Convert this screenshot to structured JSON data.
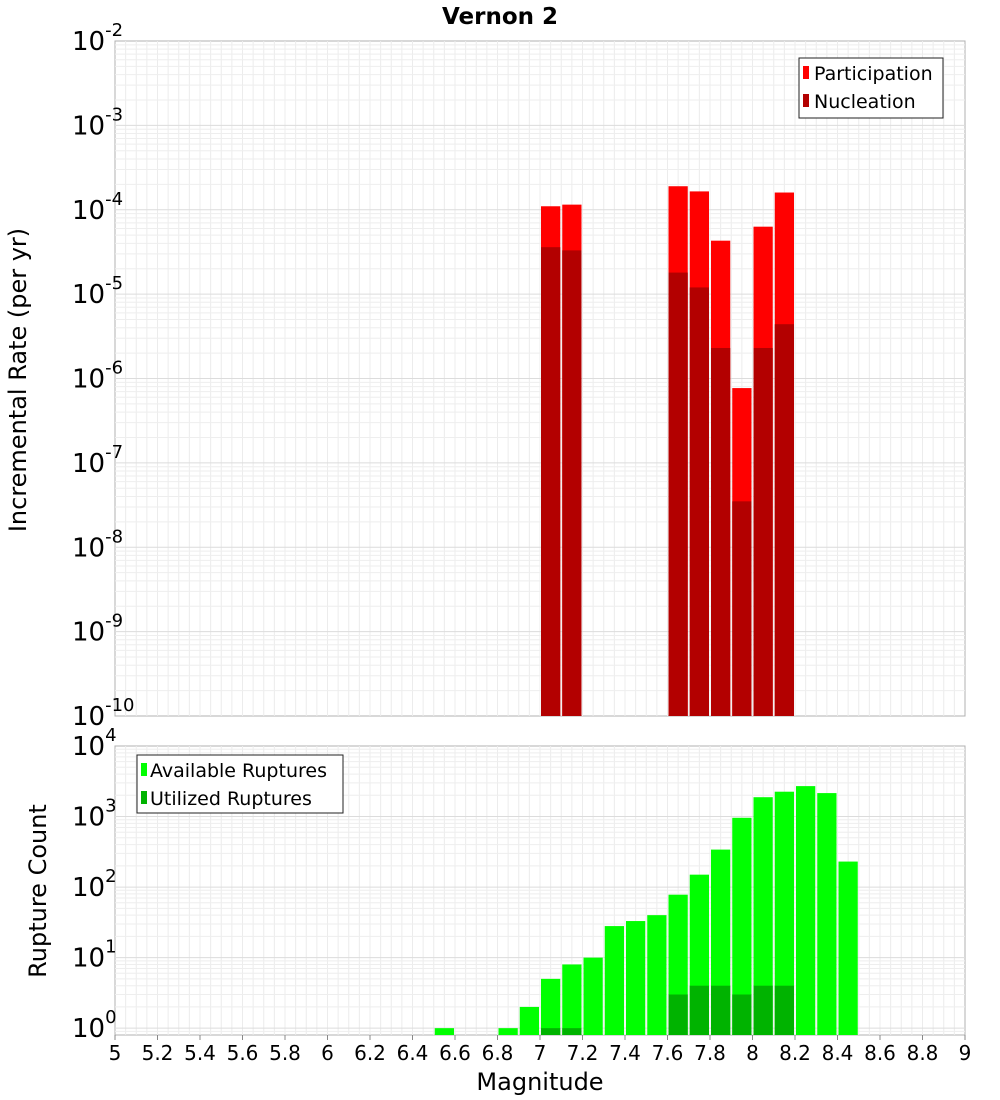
{
  "chart_data": [
    {
      "type": "bar",
      "title": "Vernon 2",
      "xlabel": "",
      "ylabel": "Incremental Rate (per yr)",
      "yscale": "log",
      "ylim": [
        1e-10,
        0.01
      ],
      "xlim": [
        5,
        9
      ],
      "bin_width": 0.1,
      "y_tick_labels": [
        {
          "base": "10",
          "exp": "-2"
        },
        {
          "base": "10",
          "exp": "-3"
        },
        {
          "base": "10",
          "exp": "-4"
        },
        {
          "base": "10",
          "exp": "-5"
        },
        {
          "base": "10",
          "exp": "-6"
        },
        {
          "base": "10",
          "exp": "-7"
        },
        {
          "base": "10",
          "exp": "-8"
        },
        {
          "base": "10",
          "exp": "-9"
        },
        {
          "base": "10",
          "exp": "-10"
        }
      ],
      "legend_position": "top-right",
      "series": [
        {
          "name": "Participation",
          "color": "#ff0000",
          "x": [
            7.05,
            7.15,
            7.65,
            7.75,
            7.85,
            7.95,
            8.05,
            8.15
          ],
          "values": [
            0.00011,
            0.000115,
            0.00019,
            0.000165,
            4.3e-05,
            7.7e-07,
            6.3e-05,
            0.00016
          ]
        },
        {
          "name": "Nucleation",
          "color": "#b30000",
          "x": [
            7.05,
            7.15,
            7.65,
            7.75,
            7.85,
            7.95,
            8.05,
            8.15
          ],
          "values": [
            3.6e-05,
            3.3e-05,
            1.8e-05,
            1.2e-05,
            2.3e-06,
            3.5e-08,
            2.3e-06,
            4.4e-06
          ]
        }
      ]
    },
    {
      "type": "bar",
      "title": "",
      "xlabel": "Magnitude",
      "ylabel": "Rupture Count",
      "yscale": "log",
      "ylim": [
        0.8,
        10000
      ],
      "xlim": [
        5,
        9
      ],
      "bin_width": 0.1,
      "x_tick_labels": [
        "5",
        "5.2",
        "5.4",
        "5.6",
        "5.8",
        "6",
        "6.2",
        "6.4",
        "6.6",
        "6.8",
        "7",
        "7.2",
        "7.4",
        "7.6",
        "7.8",
        "8",
        "8.2",
        "8.4",
        "8.6",
        "8.8",
        "9"
      ],
      "y_tick_labels": [
        {
          "base": "10",
          "exp": "4"
        },
        {
          "base": "10",
          "exp": "3"
        },
        {
          "base": "10",
          "exp": "2"
        },
        {
          "base": "10",
          "exp": "1"
        },
        {
          "base": "10",
          "exp": "0"
        }
      ],
      "legend_position": "top-left",
      "series": [
        {
          "name": "Available Ruptures",
          "color": "#00ff00",
          "x": [
            6.55,
            6.85,
            6.95,
            7.05,
            7.15,
            7.25,
            7.35,
            7.45,
            7.55,
            7.65,
            7.75,
            7.85,
            7.95,
            8.05,
            8.15,
            8.25,
            8.35,
            8.45
          ],
          "values": [
            1,
            1,
            2,
            5,
            8,
            10,
            28,
            33,
            40,
            78,
            150,
            340,
            960,
            1880,
            2250,
            2700,
            2150,
            230
          ]
        },
        {
          "name": "Utilized Ruptures",
          "color": "#00b300",
          "x": [
            7.05,
            7.15,
            7.65,
            7.75,
            7.85,
            7.95,
            8.05,
            8.15
          ],
          "values": [
            1,
            1,
            3,
            4,
            4,
            3,
            4,
            4
          ]
        }
      ]
    }
  ]
}
